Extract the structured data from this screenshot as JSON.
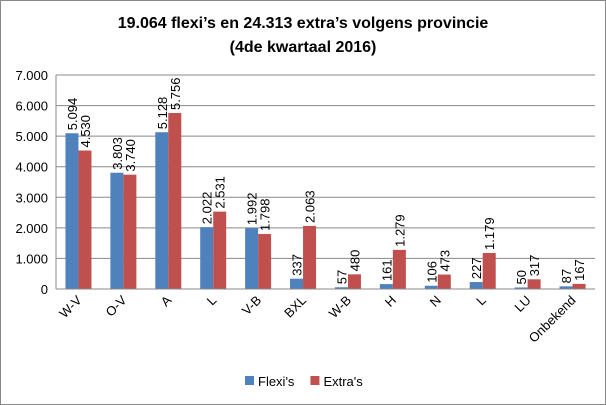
{
  "chart_data": {
    "type": "bar",
    "title": "19.064 flexi’s en 24.313 extra’s volgens provincie",
    "subtitle": "(4de kwartaal 2016)",
    "categories": [
      "W-V",
      "O-V",
      "A",
      "L",
      "V-B",
      "BXL",
      "W-B",
      "H",
      "N",
      "L",
      "LU",
      "Onbekend"
    ],
    "series": [
      {
        "name": "Flexi's",
        "color": "#4f81bd",
        "values": [
          5094,
          3803,
          5128,
          2022,
          1992,
          337,
          57,
          161,
          106,
          227,
          50,
          87
        ],
        "value_labels": [
          "5.094",
          "3.803",
          "5.128",
          "2.022",
          "1.992",
          "337",
          "57",
          "161",
          "106",
          "227",
          "50",
          "87"
        ]
      },
      {
        "name": "Extra's",
        "color": "#c0504d",
        "values": [
          4530,
          3740,
          5756,
          2531,
          1798,
          2063,
          480,
          1279,
          473,
          1179,
          317,
          167
        ],
        "value_labels": [
          "4.530",
          "3.740",
          "5.756",
          "2.531",
          "1.798",
          "2.063",
          "480",
          "1.279",
          "473",
          "1.179",
          "317",
          "167"
        ]
      }
    ],
    "ylim": [
      0,
      7000
    ],
    "yticks": [
      0,
      {
        "value": 1000,
        "label": "1.000"
      },
      {
        "value": 2000,
        "label": "2.000"
      },
      {
        "value": 3000,
        "label": "3.000"
      },
      {
        "value": 4000,
        "label": "4.000"
      },
      {
        "value": 5000,
        "label": "5.000"
      },
      {
        "value": 6000,
        "label": "6.000"
      },
      {
        "value": 7000,
        "label": "7.000"
      }
    ],
    "grid": true,
    "legend": "bottom"
  }
}
